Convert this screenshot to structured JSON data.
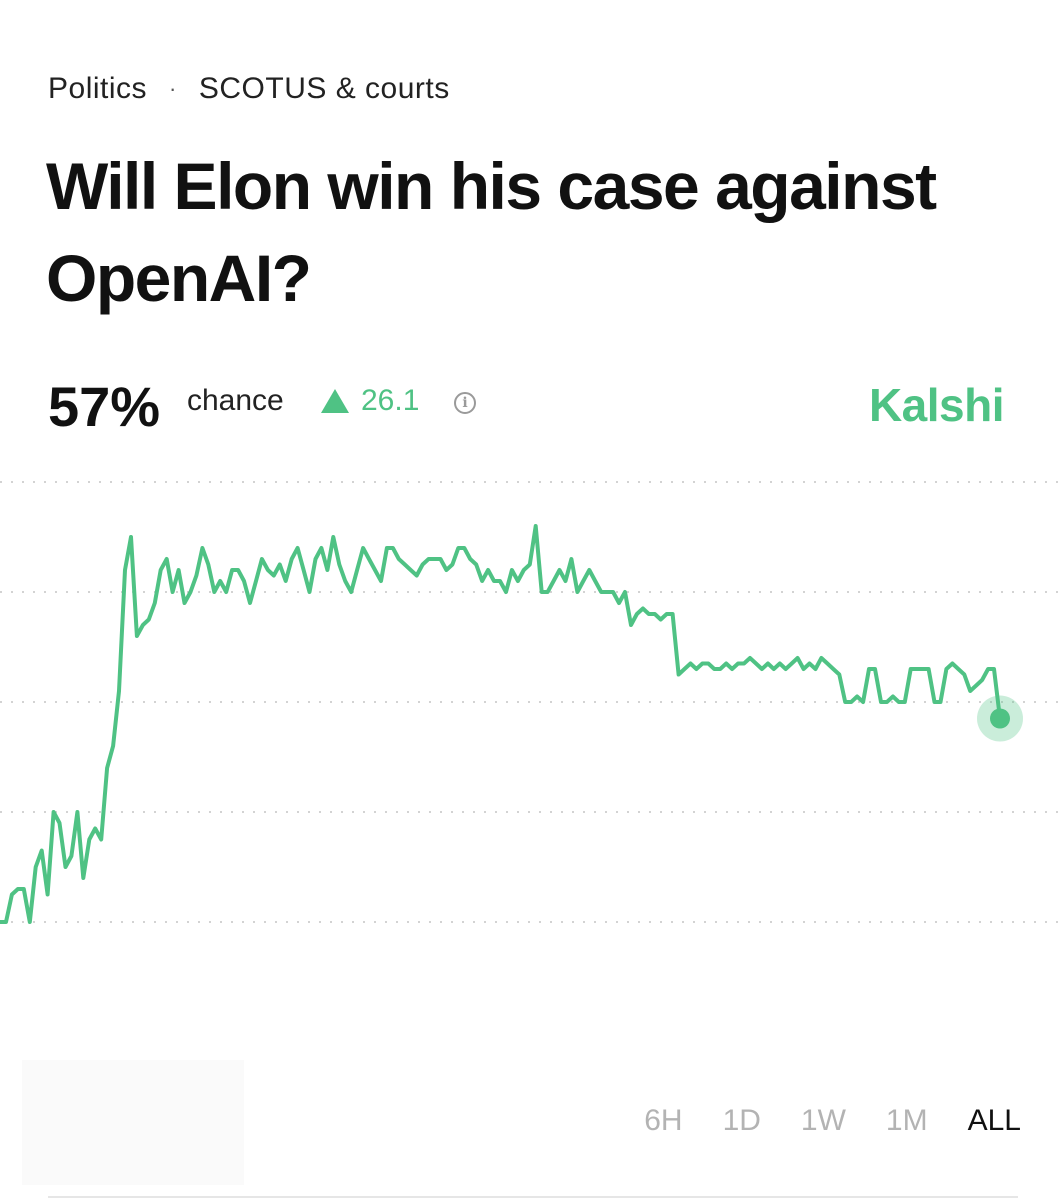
{
  "breadcrumb": {
    "category": "Politics",
    "separator": "·",
    "subcategory": "SCOTUS & courts"
  },
  "market": {
    "title": "Will Elon win his case against OpenAI?",
    "chance_value": "57%",
    "chance_label": "chance",
    "change_value": "26.1",
    "brand": "Kalshi"
  },
  "colors": {
    "accent": "#4fc284",
    "text": "#111111",
    "muted": "#b3b3b3"
  },
  "icons": {
    "change_direction": "triangle-up-icon",
    "info": "info-icon"
  },
  "time_ranges": [
    "6H",
    "1D",
    "1W",
    "1M",
    "ALL"
  ],
  "selected_range": "ALL",
  "chart_data": {
    "type": "line",
    "ylim": [
      0,
      100
    ],
    "gridlines": [
      20,
      40,
      60,
      80,
      100
    ],
    "series": [
      {
        "values": [
          20,
          20,
          25,
          26,
          26,
          20,
          30,
          33,
          25,
          40,
          38,
          30,
          32,
          40,
          28,
          35,
          37,
          35,
          48,
          52,
          62,
          84,
          90,
          72,
          74,
          75,
          78,
          84,
          86,
          80,
          84,
          78,
          80,
          83,
          88,
          85,
          80,
          82,
          80,
          84,
          84,
          82,
          78,
          82,
          86,
          84,
          83,
          85,
          82,
          86,
          88,
          84,
          80,
          86,
          88,
          84,
          90,
          85,
          82,
          80,
          84,
          88,
          86,
          84,
          82,
          88,
          88,
          86,
          85,
          84,
          83,
          85,
          86,
          86,
          86,
          84,
          85,
          88,
          88,
          86,
          85,
          82,
          84,
          82,
          82,
          80,
          84,
          82,
          84,
          85,
          92,
          80,
          80,
          82,
          84,
          82,
          86,
          80,
          82,
          84,
          82,
          80,
          80,
          80,
          78,
          80,
          74,
          76,
          77,
          76,
          76,
          75,
          76,
          76,
          65,
          66,
          67,
          66,
          67,
          67,
          66,
          66,
          67,
          66,
          67,
          67,
          68,
          67,
          66,
          67,
          66,
          67,
          66,
          67,
          68,
          66,
          67,
          66,
          68,
          67,
          66,
          65,
          60,
          60,
          61,
          60,
          66,
          66,
          60,
          60,
          61,
          60,
          60,
          66,
          66,
          66,
          66,
          60,
          60,
          66,
          67,
          66,
          65,
          62,
          63,
          64,
          66,
          66,
          57
        ]
      }
    ]
  }
}
